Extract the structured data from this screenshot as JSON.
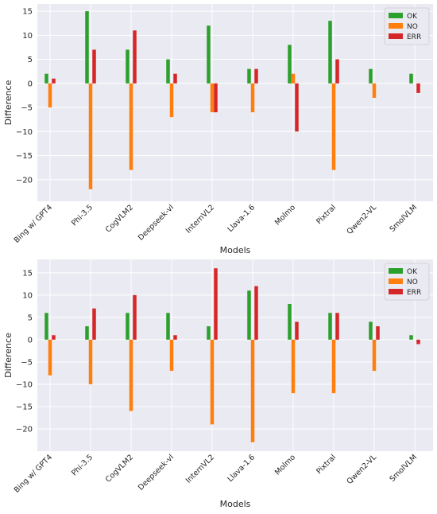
{
  "chart_data": [
    {
      "type": "bar",
      "categories": [
        "Bing w/ GPT4",
        "Phi-3.5",
        "CogVLM2",
        "Deepseek-vl",
        "InternVL2",
        "Llava-1.6",
        "Molmo",
        "Pixtral",
        "Qwen2-VL",
        "SmolVLM"
      ],
      "series": [
        {
          "name": "OK",
          "color": "#2ca02c",
          "values": [
            2,
            15,
            7,
            5,
            12,
            3,
            8,
            13,
            3,
            2
          ]
        },
        {
          "name": "NO",
          "color": "#ff7f0e",
          "values": [
            -5,
            -22,
            -18,
            -7,
            -6,
            -6,
            2,
            -18,
            -3,
            0
          ]
        },
        {
          "name": "ERR",
          "color": "#d62728",
          "values": [
            1,
            7,
            11,
            2,
            -6,
            3,
            -10,
            5,
            0,
            -2
          ]
        }
      ],
      "xlabel": "Models",
      "ylabel": "Difference",
      "ylim": [
        -24.5,
        16.5
      ],
      "yticks": [
        -20,
        -15,
        -10,
        -5,
        0,
        5,
        10,
        15
      ],
      "grid": true,
      "legend": "top-right"
    },
    {
      "type": "bar",
      "categories": [
        "Bing w/ GPT4",
        "Phi-3.5",
        "CogVLM2",
        "Deepseek-vl",
        "InternVL2",
        "Llava-1.6",
        "Molmo",
        "Pixtral",
        "Qwen2-VL",
        "SmolVLM"
      ],
      "series": [
        {
          "name": "OK",
          "color": "#2ca02c",
          "values": [
            6,
            3,
            6,
            6,
            3,
            11,
            8,
            6,
            4,
            1
          ]
        },
        {
          "name": "NO",
          "color": "#ff7f0e",
          "values": [
            -8,
            -10,
            -16,
            -7,
            -19,
            -23,
            -12,
            -12,
            -7,
            0
          ]
        },
        {
          "name": "ERR",
          "color": "#d62728",
          "values": [
            1,
            7,
            10,
            1,
            16,
            12,
            4,
            6,
            3,
            -1
          ]
        }
      ],
      "xlabel": "Models",
      "ylabel": "Difference",
      "ylim": [
        -25,
        18
      ],
      "yticks": [
        -20,
        -15,
        -10,
        -5,
        0,
        5,
        10,
        15
      ],
      "grid": true,
      "legend": "top-right"
    }
  ]
}
